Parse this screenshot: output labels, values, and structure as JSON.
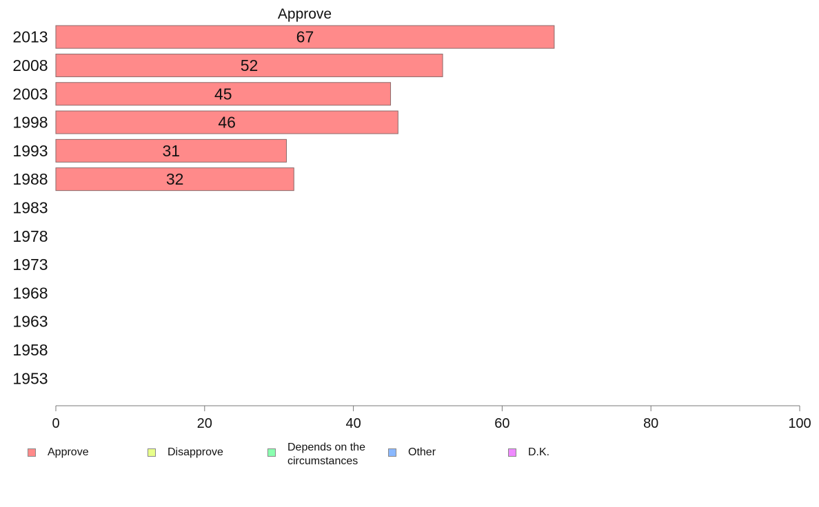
{
  "chart_data": {
    "type": "bar",
    "orientation": "horizontal",
    "title": "Approve",
    "categories": [
      "2013",
      "2008",
      "2003",
      "1998",
      "1993",
      "1988",
      "1983",
      "1978",
      "1973",
      "1968",
      "1963",
      "1958",
      "1953"
    ],
    "series": [
      {
        "name": "Approve",
        "values": [
          67,
          52,
          45,
          46,
          31,
          32,
          null,
          null,
          null,
          null,
          null,
          null,
          null
        ]
      }
    ],
    "data_labels": [
      "67",
      "52",
      "45",
      "46",
      "31",
      "32"
    ],
    "xlim": [
      0,
      100
    ],
    "xticks": [
      "0",
      "20",
      "40",
      "60",
      "80",
      "100"
    ],
    "grid": false,
    "legend_position": "bottom",
    "bar_color": "#ff8a8a"
  },
  "legend": [
    {
      "label": "Approve",
      "color": "#ff8a8a"
    },
    {
      "label": "Disapprove",
      "color": "#e8ff8a"
    },
    {
      "label": "Depends on the circumstances",
      "color": "#8affb0"
    },
    {
      "label": "Other",
      "color": "#8ab8ff"
    },
    {
      "label": "D.K.",
      "color": "#ef8aff"
    }
  ]
}
